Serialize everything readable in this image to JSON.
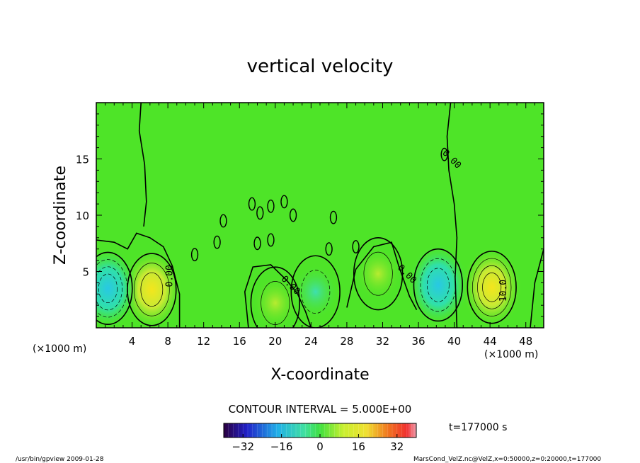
{
  "chart_data": {
    "type": "heatmap",
    "title": "vertical velocity",
    "xlabel": "X-coordinate",
    "ylabel": "Z-coordinate",
    "x_unit_left": "(×1000 m)",
    "x_unit_right": "(×1000 m)",
    "xlim": [
      0,
      50
    ],
    "ylim": [
      0,
      20
    ],
    "x_ticks": [
      4,
      8,
      12,
      16,
      20,
      24,
      28,
      32,
      36,
      40,
      44,
      48
    ],
    "y_ticks": [
      5,
      10,
      15
    ],
    "contour_interval_label": "CONTOUR INTERVAL = 5.000E+00",
    "time_label": "t=177000  s",
    "colorbar": {
      "min": -40,
      "max": 40,
      "ticks": [
        -32,
        -16,
        0,
        16,
        32
      ]
    },
    "contour_labels": [
      {
        "text": "0.00",
        "x": 8.5,
        "y": 4.6,
        "rot": -90
      },
      {
        "text": "0.00",
        "x": 21.5,
        "y": 3.6,
        "rot": 45
      },
      {
        "text": "0.00",
        "x": 34.5,
        "y": 4.6,
        "rot": 45
      },
      {
        "text": "0.00",
        "x": 39.5,
        "y": 14.8,
        "rot": 45
      },
      {
        "text": "10.0",
        "x": 45.8,
        "y": 3.3,
        "rot": -90
      }
    ],
    "features": [
      {
        "kind": "updraft",
        "x": 6.2,
        "y": 3.4,
        "peak": 14
      },
      {
        "kind": "updraft",
        "x": 44.2,
        "y": 3.6,
        "peak": 17
      },
      {
        "kind": "updraft",
        "x": 31.5,
        "y": 4.8,
        "peak": 6
      },
      {
        "kind": "updraft",
        "x": 20,
        "y": 2.2,
        "peak": 5
      },
      {
        "kind": "downdraft",
        "x": 1.3,
        "y": 3.5,
        "peak": -16
      },
      {
        "kind": "downdraft",
        "x": 38.2,
        "y": 3.8,
        "peak": -12
      },
      {
        "kind": "downdraft",
        "x": 24.5,
        "y": 3.2,
        "peak": -5
      }
    ]
  },
  "footer": {
    "left": "/usr/bin/gpview  2009-01-28",
    "right": "MarsCond_VelZ.nc@VelZ,x=0:50000,z=0:20000,t=177000"
  }
}
